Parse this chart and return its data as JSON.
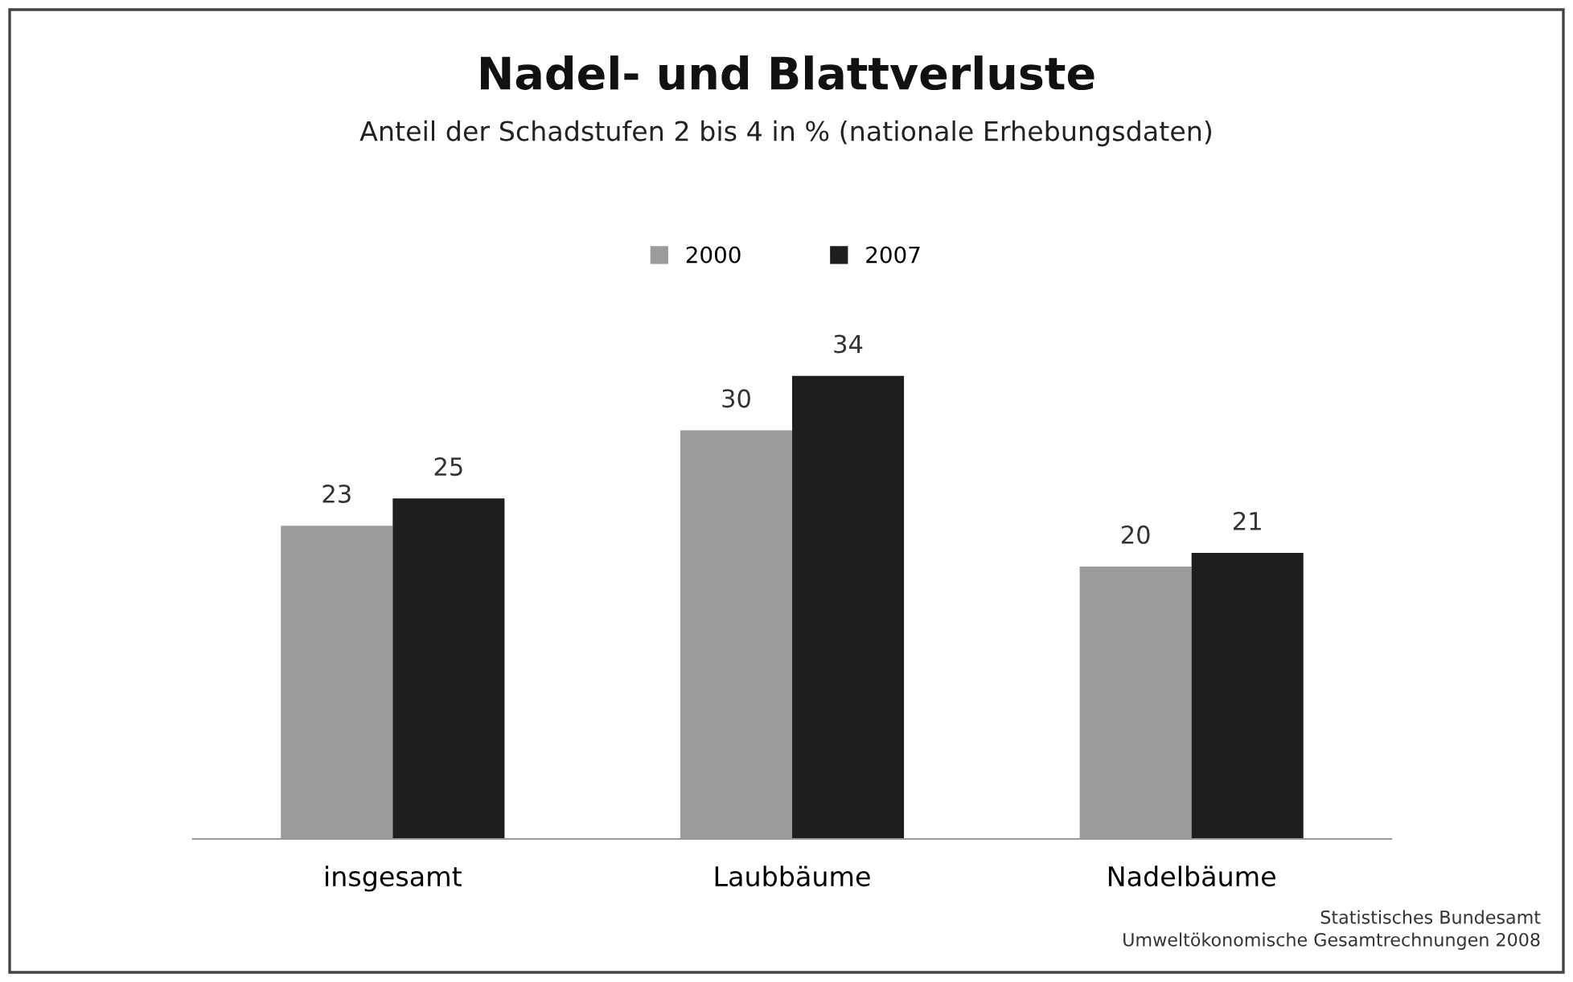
{
  "chart_data": {
    "type": "bar",
    "title": "Nadel- und Blattverluste",
    "subtitle": "Anteil der Schadstufen 2 bis 4 in % (nationale Erhebungsdaten)",
    "categories": [
      "insgesamt",
      "Laubbäume",
      "Nadelbäume"
    ],
    "series": [
      {
        "name": "2000",
        "color": "#9b9b9b",
        "values": [
          23,
          30,
          20
        ]
      },
      {
        "name": "2007",
        "color": "#1e1e1e",
        "values": [
          25,
          34,
          21
        ]
      }
    ],
    "data_labels": true,
    "legend": "top",
    "grid": false,
    "annotations": [
      "Statistisches Bundesamt",
      "Umweltökonomische Gesamtrechnungen 2008"
    ]
  }
}
